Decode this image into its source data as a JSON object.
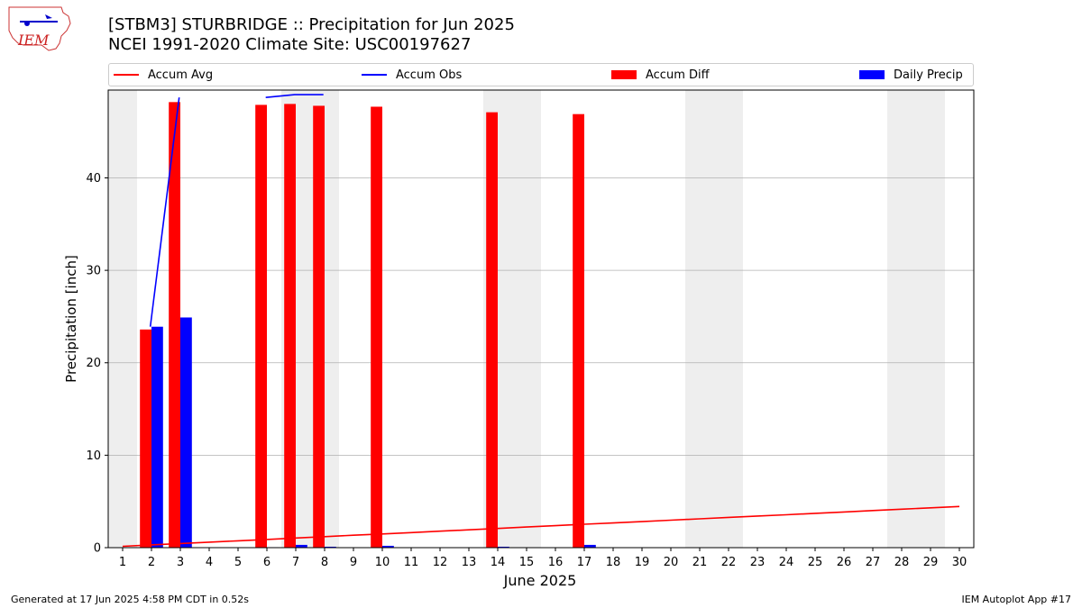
{
  "header": {
    "title_line1": "[STBM3] STURBRIDGE :: Precipitation for Jun 2025",
    "title_line2": "NCEI 1991-2020 Climate Site: USC00197627",
    "logo_text": "IEM"
  },
  "footer": {
    "left": "Generated at 17 Jun 2025 4:58 PM CDT in 0.52s",
    "right": "IEM Autoplot App #17"
  },
  "legend": [
    {
      "label": "Accum Avg",
      "kind": "line",
      "color": "#ff0000"
    },
    {
      "label": "Accum Obs",
      "kind": "line",
      "color": "#0000ff"
    },
    {
      "label": "Accum Diff",
      "kind": "bar",
      "color": "#ff0000"
    },
    {
      "label": "Daily Precip",
      "kind": "bar",
      "color": "#0000ff"
    }
  ],
  "chart_data": {
    "type": "bar",
    "xlabel": "June 2025",
    "ylabel": "Precipitation [inch]",
    "x": [
      1,
      2,
      3,
      4,
      5,
      6,
      7,
      8,
      9,
      10,
      11,
      12,
      13,
      14,
      15,
      16,
      17,
      18,
      19,
      20,
      21,
      22,
      23,
      24,
      25,
      26,
      27,
      28,
      29,
      30
    ],
    "xlim": [
      0.5,
      30.5
    ],
    "ylim": [
      0,
      49.5
    ],
    "yticks": [
      0,
      10,
      20,
      30,
      40
    ],
    "grid": true,
    "weekend_days": [
      1,
      7,
      8,
      14,
      15,
      21,
      22,
      28,
      29
    ],
    "series": [
      {
        "name": "Accum Diff",
        "type": "bar",
        "color": "#ff0000",
        "values": [
          null,
          23.6,
          48.2,
          null,
          null,
          47.9,
          48.0,
          47.8,
          null,
          47.7,
          null,
          null,
          null,
          47.1,
          null,
          null,
          46.9,
          null,
          null,
          null,
          null,
          null,
          null,
          null,
          null,
          null,
          null,
          null,
          null,
          null
        ]
      },
      {
        "name": "Daily Precip",
        "type": "bar",
        "color": "#0000ff",
        "values": [
          0,
          23.9,
          24.9,
          0,
          0,
          0.05,
          0.3,
          0.1,
          0,
          0.2,
          0,
          0,
          0,
          0.1,
          0,
          0,
          0.3,
          0,
          0,
          0,
          0,
          0,
          0,
          0,
          0,
          0,
          0,
          0,
          0,
          0
        ]
      },
      {
        "name": "Accum Avg",
        "type": "line",
        "color": "#ff0000",
        "values": [
          0.15,
          0.3,
          0.45,
          0.59,
          0.74,
          0.89,
          1.04,
          1.19,
          1.34,
          1.48,
          1.63,
          1.78,
          1.93,
          2.08,
          2.23,
          2.38,
          2.53,
          2.67,
          2.82,
          2.97,
          3.12,
          3.27,
          3.42,
          3.56,
          3.71,
          3.86,
          4.01,
          4.16,
          4.31,
          4.45
        ]
      },
      {
        "name": "Accum Obs",
        "type": "line",
        "color": "#0000ff",
        "values": [
          null,
          23.9,
          48.7,
          null,
          null,
          48.7,
          49.0,
          49.0,
          null,
          null,
          null,
          null,
          null,
          null,
          null,
          null,
          null,
          null,
          null,
          null,
          null,
          null,
          null,
          null,
          null,
          null,
          null,
          null,
          null,
          null
        ]
      }
    ]
  }
}
